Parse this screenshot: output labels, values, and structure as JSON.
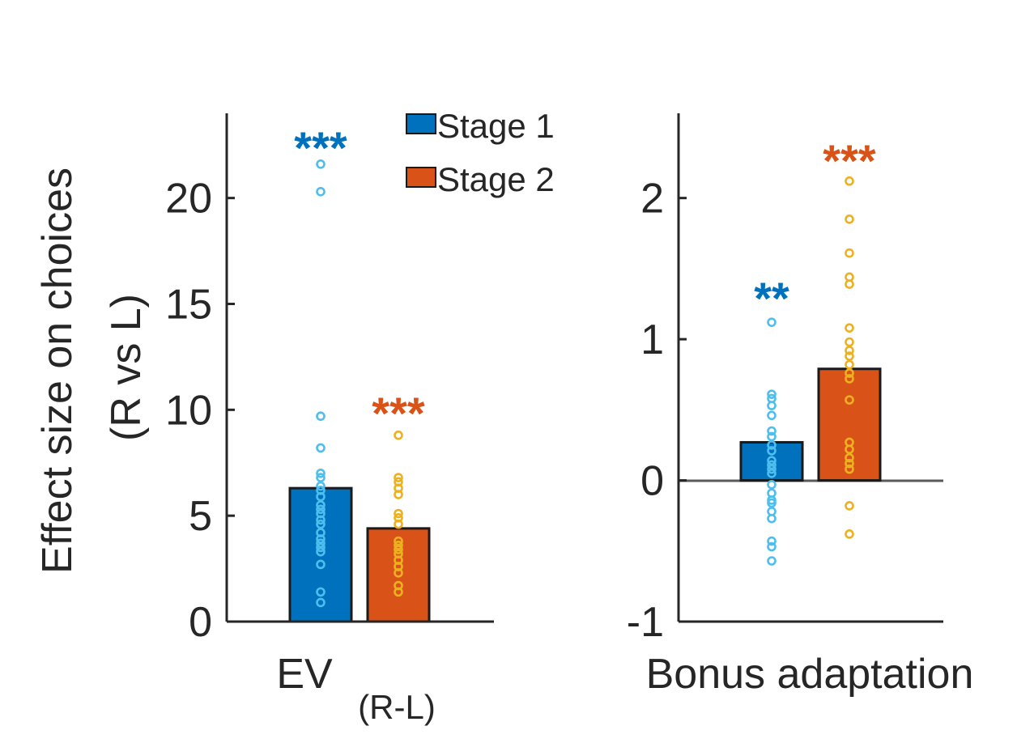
{
  "chart_data": [
    {
      "type": "bar",
      "panel": "left",
      "xlabel_main": "EV",
      "xlabel_sub": "(R-L)",
      "ylabel_line1": "Effect size on choices",
      "ylabel_line2": "(R vs L)",
      "ylim": [
        0,
        24
      ],
      "yticks": [
        0,
        5,
        10,
        15,
        20
      ],
      "ytick_labels": [
        "0",
        "5",
        "10",
        "15",
        "20"
      ],
      "series": [
        {
          "name": "Stage 1",
          "value": 6.3,
          "bar_color": "#0072bd",
          "point_color": "#4dbeee",
          "significance": "***",
          "points": [
            21.6,
            20.3,
            9.7,
            8.2,
            7.0,
            6.8,
            6.4,
            6.2,
            5.9,
            5.5,
            5.3,
            5.1,
            4.8,
            4.6,
            4.2,
            3.9,
            3.7,
            3.5,
            3.3,
            2.7,
            1.4,
            0.9
          ]
        },
        {
          "name": "Stage 2",
          "value": 4.4,
          "bar_color": "#d95319",
          "point_color": "#edb120",
          "significance": "***",
          "points": [
            8.8,
            6.8,
            6.6,
            6.3,
            6.0,
            5.1,
            4.9,
            4.6,
            3.8,
            3.6,
            3.4,
            3.2,
            2.9,
            2.6,
            2.3,
            1.7,
            1.4
          ]
        }
      ]
    },
    {
      "type": "bar",
      "panel": "right",
      "xlabel_main": "Bonus adaptation",
      "ylim": [
        -1,
        2.6
      ],
      "yticks": [
        -1,
        0,
        1,
        2
      ],
      "ytick_labels": [
        "-1",
        "0",
        "1",
        "2"
      ],
      "zero_line": true,
      "series": [
        {
          "name": "Stage 1",
          "value": 0.27,
          "bar_color": "#0072bd",
          "point_color": "#4dbeee",
          "significance": "**",
          "points": [
            1.12,
            0.61,
            0.58,
            0.53,
            0.46,
            0.35,
            0.31,
            0.25,
            0.21,
            0.14,
            0.11,
            0.08,
            0.05,
            -0.03,
            -0.09,
            -0.14,
            -0.16,
            -0.22,
            -0.27,
            -0.43,
            -0.47,
            -0.57
          ]
        },
        {
          "name": "Stage 2",
          "value": 0.79,
          "bar_color": "#d95319",
          "point_color": "#edb120",
          "significance": "***",
          "points": [
            2.12,
            1.85,
            1.61,
            1.44,
            1.39,
            1.08,
            0.98,
            0.92,
            0.88,
            0.82,
            0.76,
            0.72,
            0.57,
            0.27,
            0.22,
            0.16,
            0.12,
            0.08,
            -0.18,
            -0.38
          ]
        }
      ]
    }
  ],
  "legend": {
    "placement": "top-center",
    "entries": [
      {
        "label": "Stage 1",
        "color": "#0072bd"
      },
      {
        "label": "Stage 2",
        "color": "#d95319"
      }
    ]
  },
  "colors": {
    "axis": "#262626",
    "zero_line": "#5a5a5a",
    "bar_edge": "#1a1a1a"
  }
}
